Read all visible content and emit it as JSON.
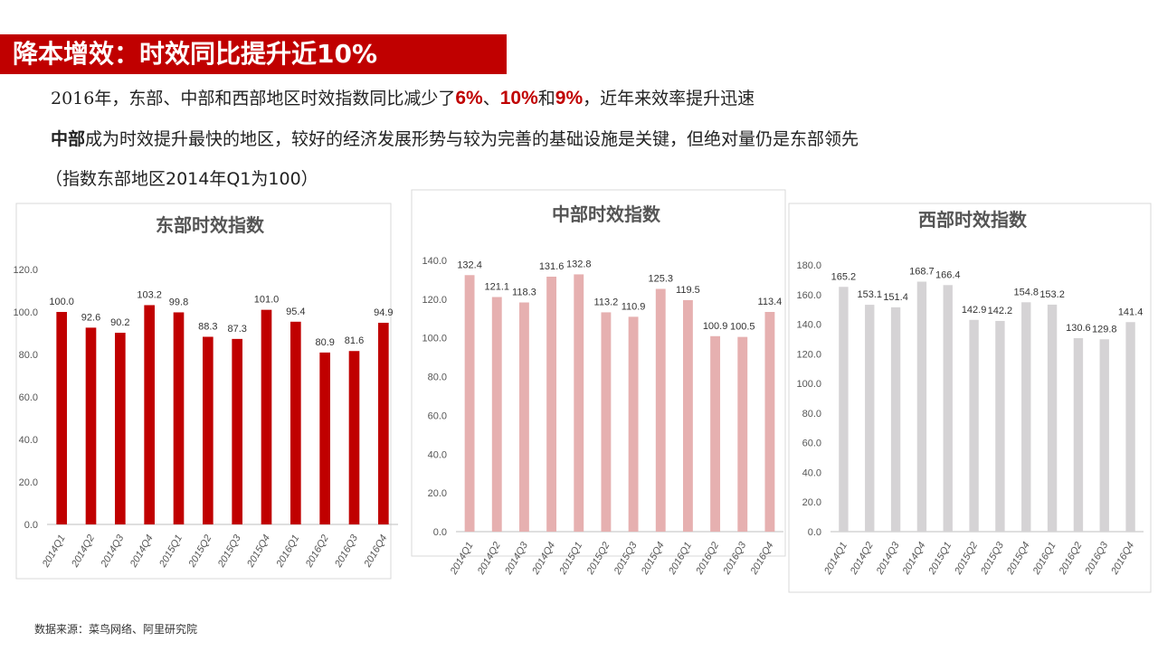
{
  "header": {
    "title": "降本增效：时效同比提升近10%"
  },
  "intro": {
    "line1_pre": "2016年，东部、中部和西部地区时效指数同比减少了",
    "line1_h1": "6%",
    "line1_sep1": "、",
    "line1_h2": "10%",
    "line1_sep2": "和",
    "line1_h3": "9%",
    "line1_post": "，近年来效率提升迅速",
    "line2_bold": "中部",
    "line2_rest": "成为时效提升最快的地区，较好的经济发展形势与较为完善的基础设施是关键，但绝对量仍是东部领先",
    "line3": "（指数东部地区2014年Q1为100）"
  },
  "source": "数据来源：菜鸟网络、阿里研究院",
  "colors": {
    "east": "#c00000",
    "central": "#e6b0b0",
    "west": "#d5d3d5",
    "title_bar": "#c00000"
  },
  "chart_data": [
    {
      "type": "bar",
      "title": "东部时效指数",
      "categories": [
        "2014Q1",
        "2014Q2",
        "2014Q3",
        "2014Q4",
        "2015Q1",
        "2015Q2",
        "2015Q3",
        "2015Q4",
        "2016Q1",
        "2016Q2",
        "2016Q3",
        "2016Q4"
      ],
      "values": [
        100.0,
        92.6,
        90.2,
        103.2,
        99.8,
        88.3,
        87.3,
        101.0,
        95.4,
        80.9,
        81.6,
        94.9
      ],
      "ylim": [
        0,
        120
      ],
      "yticks": [
        "0.0",
        "20.0",
        "40.0",
        "60.0",
        "80.0",
        "100.0",
        "120.0"
      ],
      "grid": false,
      "color": "#c00000"
    },
    {
      "type": "bar",
      "title": "中部时效指数",
      "categories": [
        "2014Q1",
        "2014Q2",
        "2014Q3",
        "2014Q4",
        "2015Q1",
        "2015Q2",
        "2015Q3",
        "2015Q4",
        "2016Q1",
        "2016Q2",
        "2016Q3",
        "2016Q4"
      ],
      "values": [
        132.4,
        121.1,
        118.3,
        131.6,
        132.8,
        113.2,
        110.9,
        125.3,
        119.5,
        100.9,
        100.5,
        113.4
      ],
      "ylim": [
        0,
        140
      ],
      "yticks": [
        "0.0",
        "20.0",
        "40.0",
        "60.0",
        "80.0",
        "100.0",
        "120.0",
        "140.0"
      ],
      "grid": false,
      "color": "#e6b0b0"
    },
    {
      "type": "bar",
      "title": "西部时效指数",
      "categories": [
        "2014Q1",
        "2014Q2",
        "2014Q3",
        "2014Q4",
        "2015Q1",
        "2015Q2",
        "2015Q3",
        "2015Q4",
        "2016Q1",
        "2016Q2",
        "2016Q3",
        "2016Q4"
      ],
      "values": [
        165.2,
        153.1,
        151.4,
        168.7,
        166.4,
        142.9,
        142.2,
        154.8,
        153.2,
        130.6,
        129.8,
        141.4
      ],
      "ylim": [
        0,
        180
      ],
      "yticks": [
        "0.0",
        "20.0",
        "40.0",
        "60.0",
        "80.0",
        "100.0",
        "120.0",
        "140.0",
        "160.0",
        "180.0"
      ],
      "grid": false,
      "color": "#d5d3d5"
    }
  ]
}
